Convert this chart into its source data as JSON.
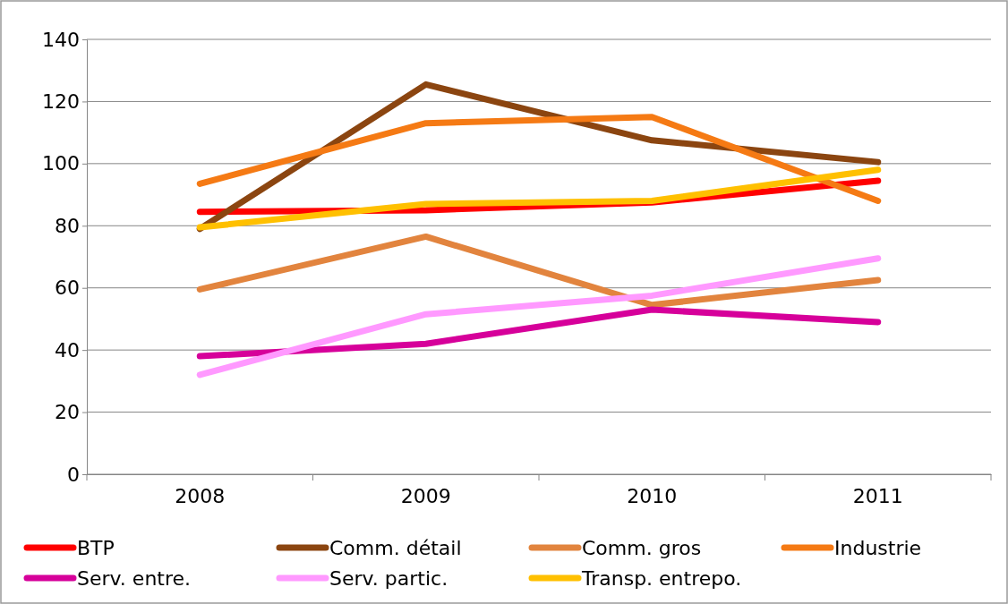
{
  "chart_data": {
    "type": "line",
    "categories": [
      "2008",
      "2009",
      "2010",
      "2011"
    ],
    "ylim": [
      0,
      140
    ],
    "yticks": [
      0,
      20,
      40,
      60,
      80,
      100,
      120,
      140
    ],
    "grid": "y",
    "legend": "bottom",
    "marker": "none",
    "line_style": "solid",
    "series": [
      {
        "name": "BTP",
        "color": "#ff0000",
        "values": [
          84.5,
          85,
          87.5,
          94.5
        ]
      },
      {
        "name": "Comm. détail",
        "color": "#8b4510",
        "values": [
          79,
          125.5,
          107.5,
          100.5
        ]
      },
      {
        "name": "Comm. gros",
        "color": "#e2843e",
        "values": [
          59.5,
          76.5,
          54.5,
          62.5
        ]
      },
      {
        "name": "Industrie",
        "color": "#f57a14",
        "values": [
          93.5,
          113,
          115,
          88
        ]
      },
      {
        "name": "Serv. entre.",
        "color": "#d6009a",
        "values": [
          38,
          42,
          53,
          49
        ]
      },
      {
        "name": "Serv. partic.",
        "color": "#ff99ff",
        "values": [
          32,
          51.5,
          57.5,
          69.5
        ]
      },
      {
        "name": "Transp. entrepo.",
        "color": "#ffc000",
        "values": [
          79.5,
          87,
          88,
          98
        ]
      }
    ]
  }
}
